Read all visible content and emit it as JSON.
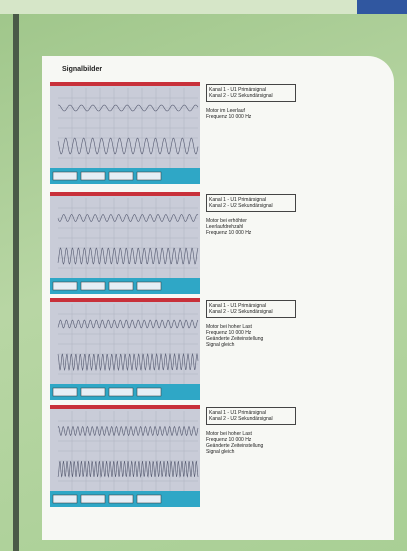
{
  "title": "Signalbilder",
  "panels": [
    {
      "channels": [
        "Kanal 1 - U1 Primärsignal",
        "Kanal 2 - U2 Sekundärsignal"
      ],
      "notes": [
        "Motor im Leerlauf",
        "Frequenz 10 000 Hz"
      ]
    },
    {
      "channels": [
        "Kanal 1 - U1 Primärsignal",
        "Kanal 2 - U2 Sekundärsignal"
      ],
      "notes": [
        "Motor bei erhöhter",
        "Leerlaufdrehzahl",
        "Frequenz 10 000 Hz"
      ]
    },
    {
      "channels": [
        "Kanal 1 - U1 Primärsignal",
        "Kanal 2 - U2 Sekundärsignal"
      ],
      "notes": [
        "Motor bei hoher Last",
        "Frequenz 10 000 Hz",
        "Geänderte Zeiteinstellung",
        "Signal gleich"
      ]
    },
    {
      "channels": [
        "Kanal 1 - U1 Primärsignal",
        "Kanal 2 - U2 Sekundärsignal"
      ],
      "notes": [
        "Motor bei hoher Last",
        "Frequenz 10 000 Hz",
        "Geänderte Zeiteinstellung",
        "Signal gleich"
      ]
    }
  ]
}
